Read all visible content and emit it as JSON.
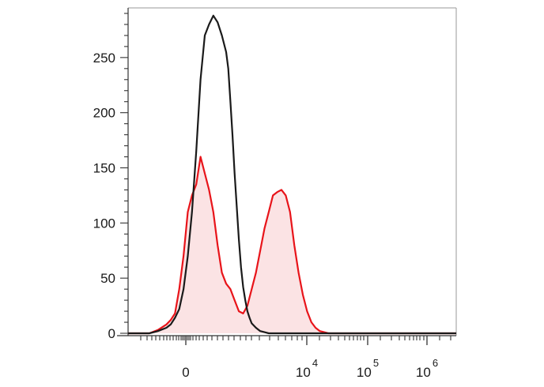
{
  "chart_data": {
    "type": "area",
    "title": "",
    "xlabel": "",
    "ylabel": "",
    "x_scale": "biexponential",
    "x_range_decades": [
      -1.3,
      6.4
    ],
    "ylim": [
      0,
      295
    ],
    "y_ticks": [
      0,
      50,
      100,
      150,
      200,
      250
    ],
    "y_tick_labels": [
      "0",
      "50",
      "100",
      "150",
      "200",
      "250"
    ],
    "x_ticks": [
      {
        "base": "0",
        "exp": ""
      },
      {
        "base": "10",
        "exp": "4"
      },
      {
        "base": "10",
        "exp": "5"
      },
      {
        "base": "10",
        "exp": "6"
      }
    ],
    "grid": false,
    "legend": "none",
    "series": [
      {
        "color": "#1a1a1a",
        "fill": "none",
        "x": [
          -1.3,
          -0.8,
          -0.6,
          -0.4,
          -0.3,
          -0.2,
          -0.1,
          0.0,
          0.1,
          0.2,
          0.3,
          0.4,
          0.5,
          0.6,
          0.7,
          0.8,
          0.9,
          1.0,
          1.05,
          1.1,
          1.15,
          1.2,
          1.25,
          1.3,
          1.35,
          1.4,
          1.45,
          1.5,
          1.55,
          1.6,
          1.7,
          1.8,
          1.9,
          2.0,
          2.1,
          2.2,
          2.3,
          2.4,
          2.5,
          2.6,
          2.8,
          3.0,
          6.4
        ],
        "y": [
          0,
          0,
          2,
          5,
          8,
          14,
          22,
          40,
          70,
          110,
          165,
          230,
          270,
          280,
          288,
          282,
          270,
          255,
          240,
          210,
          180,
          145,
          115,
          85,
          60,
          42,
          30,
          20,
          14,
          9,
          5,
          2,
          1,
          0,
          0,
          0,
          0,
          0,
          0,
          0,
          0,
          0,
          0
        ]
      },
      {
        "color": "#e8141a",
        "fill": "#fbe3e4",
        "x": [
          -1.3,
          -0.8,
          -0.6,
          -0.4,
          -0.3,
          -0.2,
          -0.1,
          0.0,
          0.1,
          0.2,
          0.3,
          0.4,
          0.5,
          0.6,
          0.7,
          0.8,
          0.9,
          1.0,
          1.1,
          1.2,
          1.3,
          1.4,
          1.5,
          1.6,
          1.7,
          1.8,
          1.9,
          2.0,
          2.1,
          2.2,
          2.3,
          2.4,
          2.5,
          2.6,
          2.7,
          2.8,
          2.9,
          3.0,
          3.1,
          3.2,
          3.3,
          3.4,
          3.5,
          3.6,
          3.7,
          3.8,
          6.4
        ],
        "y": [
          0,
          0,
          3,
          8,
          12,
          18,
          40,
          70,
          110,
          125,
          135,
          160,
          145,
          130,
          110,
          80,
          55,
          45,
          40,
          30,
          20,
          18,
          25,
          40,
          55,
          75,
          95,
          110,
          125,
          128,
          130,
          125,
          110,
          80,
          55,
          35,
          20,
          10,
          5,
          2,
          1,
          0,
          0,
          0,
          0,
          0,
          0
        ]
      }
    ]
  }
}
